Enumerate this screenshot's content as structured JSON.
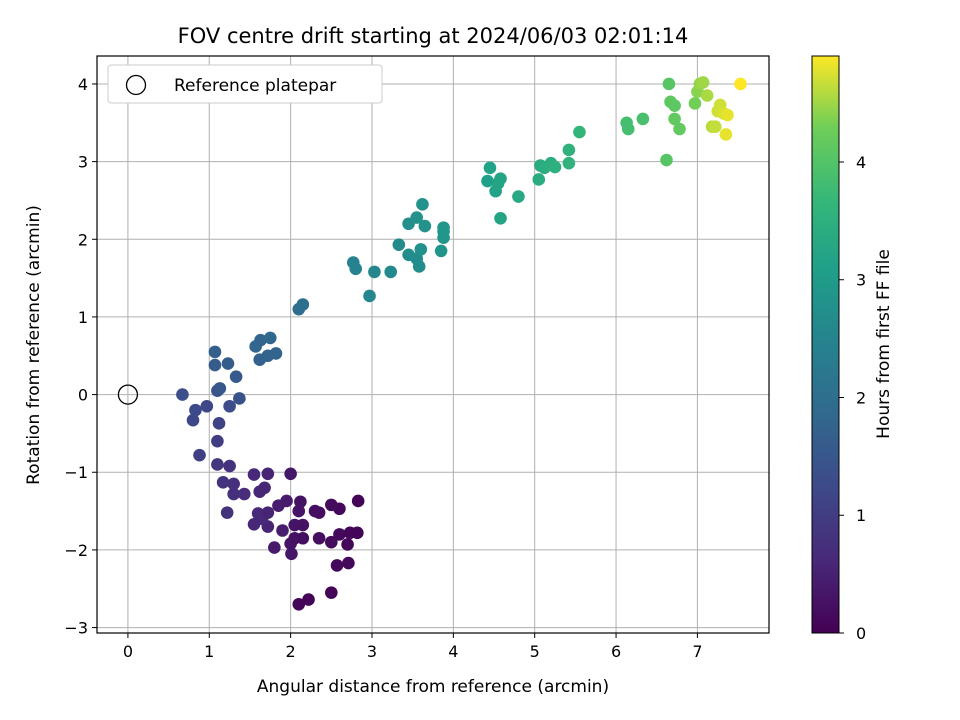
{
  "chart_data": {
    "type": "scatter",
    "title": "FOV centre drift starting at 2024/06/03 02:01:14",
    "xlabel": "Angular distance from reference (arcmin)",
    "ylabel": "Rotation from reference (arcmin)",
    "xlim": [
      -0.38,
      7.88
    ],
    "ylim": [
      -3.07,
      4.36
    ],
    "xticks": [
      0,
      1,
      2,
      3,
      4,
      5,
      6,
      7
    ],
    "yticks": [
      -3,
      -2,
      -1,
      0,
      1,
      2,
      3,
      4
    ],
    "grid": true,
    "legend": {
      "position": "top-left",
      "entries": [
        "Reference platepar"
      ]
    },
    "reference_point": {
      "x": 0,
      "y": 0
    },
    "colorbar": {
      "label": "Hours from first FF file",
      "colormap": "viridis",
      "range": [
        0,
        4.9
      ],
      "ticks": [
        0,
        1,
        2,
        3,
        4
      ]
    },
    "points": [
      {
        "x": 2.1,
        "y": -2.7,
        "c": 0.05
      },
      {
        "x": 2.22,
        "y": -2.64,
        "c": 0.07
      },
      {
        "x": 2.5,
        "y": -2.55,
        "c": 0.06
      },
      {
        "x": 2.57,
        "y": -2.2,
        "c": 0.1
      },
      {
        "x": 2.71,
        "y": -2.17,
        "c": 0.12
      },
      {
        "x": 2.01,
        "y": -2.05,
        "c": 0.35
      },
      {
        "x": 1.8,
        "y": -1.97,
        "c": 0.4
      },
      {
        "x": 2.0,
        "y": -1.92,
        "c": 0.3
      },
      {
        "x": 2.5,
        "y": -1.9,
        "c": 0.15
      },
      {
        "x": 2.7,
        "y": -1.93,
        "c": 0.1
      },
      {
        "x": 2.35,
        "y": -1.85,
        "c": 0.2
      },
      {
        "x": 2.05,
        "y": -1.85,
        "c": 0.25
      },
      {
        "x": 2.15,
        "y": -1.85,
        "c": 0.22
      },
      {
        "x": 2.6,
        "y": -1.8,
        "c": 0.12
      },
      {
        "x": 2.73,
        "y": -1.78,
        "c": 0.08
      },
      {
        "x": 2.82,
        "y": -1.78,
        "c": 0.05
      },
      {
        "x": 1.9,
        "y": -1.75,
        "c": 0.45
      },
      {
        "x": 1.72,
        "y": -1.7,
        "c": 0.55
      },
      {
        "x": 2.05,
        "y": -1.68,
        "c": 0.3
      },
      {
        "x": 2.15,
        "y": -1.68,
        "c": 0.28
      },
      {
        "x": 1.55,
        "y": -1.67,
        "c": 0.6
      },
      {
        "x": 1.65,
        "y": -1.6,
        "c": 0.62
      },
      {
        "x": 1.6,
        "y": -1.53,
        "c": 0.65
      },
      {
        "x": 2.35,
        "y": -1.52,
        "c": 0.18
      },
      {
        "x": 2.3,
        "y": -1.5,
        "c": 0.2
      },
      {
        "x": 2.1,
        "y": -1.5,
        "c": 0.3
      },
      {
        "x": 2.6,
        "y": -1.47,
        "c": 0.12
      },
      {
        "x": 1.72,
        "y": -1.52,
        "c": 0.55
      },
      {
        "x": 1.22,
        "y": -1.52,
        "c": 0.8
      },
      {
        "x": 1.85,
        "y": -1.43,
        "c": 0.45
      },
      {
        "x": 2.5,
        "y": -1.42,
        "c": 0.15
      },
      {
        "x": 2.12,
        "y": -1.38,
        "c": 0.28
      },
      {
        "x": 1.95,
        "y": -1.37,
        "c": 0.4
      },
      {
        "x": 2.83,
        "y": -1.37,
        "c": 0.05
      },
      {
        "x": 1.3,
        "y": -1.28,
        "c": 0.75
      },
      {
        "x": 1.43,
        "y": -1.28,
        "c": 0.7
      },
      {
        "x": 1.62,
        "y": -1.25,
        "c": 0.6
      },
      {
        "x": 1.68,
        "y": -1.2,
        "c": 0.58
      },
      {
        "x": 1.3,
        "y": -1.15,
        "c": 0.75
      },
      {
        "x": 1.17,
        "y": -1.13,
        "c": 0.82
      },
      {
        "x": 1.55,
        "y": -1.03,
        "c": 0.62
      },
      {
        "x": 1.72,
        "y": -1.02,
        "c": 0.55
      },
      {
        "x": 2.0,
        "y": -1.02,
        "c": 0.35
      },
      {
        "x": 1.1,
        "y": -0.9,
        "c": 0.88
      },
      {
        "x": 1.25,
        "y": -0.92,
        "c": 0.8
      },
      {
        "x": 0.88,
        "y": -0.78,
        "c": 1.05
      },
      {
        "x": 1.1,
        "y": -0.6,
        "c": 1.0
      },
      {
        "x": 1.12,
        "y": -0.37,
        "c": 1.1
      },
      {
        "x": 0.8,
        "y": -0.33,
        "c": 1.2
      },
      {
        "x": 0.83,
        "y": -0.2,
        "c": 1.25
      },
      {
        "x": 0.97,
        "y": -0.15,
        "c": 1.2
      },
      {
        "x": 1.25,
        "y": -0.15,
        "c": 1.3
      },
      {
        "x": 0.67,
        "y": 0.0,
        "c": 1.35
      },
      {
        "x": 1.37,
        "y": -0.05,
        "c": 1.4
      },
      {
        "x": 1.1,
        "y": 0.05,
        "c": 1.45
      },
      {
        "x": 1.13,
        "y": 0.08,
        "c": 1.5
      },
      {
        "x": 1.33,
        "y": 0.23,
        "c": 1.55
      },
      {
        "x": 1.07,
        "y": 0.38,
        "c": 1.6
      },
      {
        "x": 1.23,
        "y": 0.4,
        "c": 1.6
      },
      {
        "x": 1.07,
        "y": 0.55,
        "c": 1.65
      },
      {
        "x": 1.62,
        "y": 0.45,
        "c": 1.7
      },
      {
        "x": 1.72,
        "y": 0.5,
        "c": 1.75
      },
      {
        "x": 1.82,
        "y": 0.53,
        "c": 1.75
      },
      {
        "x": 1.57,
        "y": 0.62,
        "c": 1.8
      },
      {
        "x": 1.63,
        "y": 0.7,
        "c": 1.8
      },
      {
        "x": 1.75,
        "y": 0.73,
        "c": 1.85
      },
      {
        "x": 2.1,
        "y": 1.1,
        "c": 2.0
      },
      {
        "x": 2.15,
        "y": 1.16,
        "c": 2.0
      },
      {
        "x": 2.77,
        "y": 1.7,
        "c": 2.45
      },
      {
        "x": 2.8,
        "y": 1.62,
        "c": 2.45
      },
      {
        "x": 2.97,
        "y": 1.27,
        "c": 2.55
      },
      {
        "x": 3.03,
        "y": 1.58,
        "c": 2.55
      },
      {
        "x": 3.23,
        "y": 1.58,
        "c": 2.6
      },
      {
        "x": 3.33,
        "y": 1.93,
        "c": 2.65
      },
      {
        "x": 3.45,
        "y": 1.8,
        "c": 2.7
      },
      {
        "x": 3.55,
        "y": 1.75,
        "c": 2.7
      },
      {
        "x": 3.58,
        "y": 1.65,
        "c": 2.7
      },
      {
        "x": 3.6,
        "y": 1.87,
        "c": 2.75
      },
      {
        "x": 3.45,
        "y": 2.2,
        "c": 2.75
      },
      {
        "x": 3.55,
        "y": 2.28,
        "c": 2.8
      },
      {
        "x": 3.62,
        "y": 2.45,
        "c": 2.8
      },
      {
        "x": 3.65,
        "y": 2.17,
        "c": 2.8
      },
      {
        "x": 3.85,
        "y": 1.85,
        "c": 2.85
      },
      {
        "x": 3.88,
        "y": 2.02,
        "c": 2.9
      },
      {
        "x": 3.88,
        "y": 2.1,
        "c": 2.9
      },
      {
        "x": 3.88,
        "y": 2.15,
        "c": 2.9
      },
      {
        "x": 4.42,
        "y": 2.75,
        "c": 3.1
      },
      {
        "x": 4.45,
        "y": 2.92,
        "c": 3.15
      },
      {
        "x": 4.52,
        "y": 2.62,
        "c": 3.15
      },
      {
        "x": 4.55,
        "y": 2.72,
        "c": 3.2
      },
      {
        "x": 4.58,
        "y": 2.27,
        "c": 3.2
      },
      {
        "x": 4.58,
        "y": 2.78,
        "c": 3.2
      },
      {
        "x": 4.8,
        "y": 2.55,
        "c": 3.3
      },
      {
        "x": 5.05,
        "y": 2.77,
        "c": 3.4
      },
      {
        "x": 5.07,
        "y": 2.95,
        "c": 3.4
      },
      {
        "x": 5.12,
        "y": 2.92,
        "c": 3.45
      },
      {
        "x": 5.2,
        "y": 2.98,
        "c": 3.45
      },
      {
        "x": 5.25,
        "y": 2.93,
        "c": 3.5
      },
      {
        "x": 5.42,
        "y": 2.98,
        "c": 3.55
      },
      {
        "x": 5.42,
        "y": 3.15,
        "c": 3.55
      },
      {
        "x": 5.55,
        "y": 3.38,
        "c": 3.6
      },
      {
        "x": 6.13,
        "y": 3.5,
        "c": 3.85
      },
      {
        "x": 6.15,
        "y": 3.42,
        "c": 3.85
      },
      {
        "x": 6.33,
        "y": 3.55,
        "c": 3.9
      },
      {
        "x": 6.62,
        "y": 3.02,
        "c": 4.05
      },
      {
        "x": 6.65,
        "y": 4.0,
        "c": 4.05
      },
      {
        "x": 6.67,
        "y": 3.77,
        "c": 4.1
      },
      {
        "x": 6.72,
        "y": 3.72,
        "c": 4.1
      },
      {
        "x": 6.72,
        "y": 3.55,
        "c": 4.15
      },
      {
        "x": 6.78,
        "y": 3.42,
        "c": 4.15
      },
      {
        "x": 6.97,
        "y": 3.75,
        "c": 4.3
      },
      {
        "x": 7.0,
        "y": 3.9,
        "c": 4.4
      },
      {
        "x": 7.03,
        "y": 4.0,
        "c": 4.45
      },
      {
        "x": 7.07,
        "y": 4.02,
        "c": 4.5
      },
      {
        "x": 7.12,
        "y": 3.85,
        "c": 4.55
      },
      {
        "x": 7.18,
        "y": 3.45,
        "c": 4.6
      },
      {
        "x": 7.22,
        "y": 3.45,
        "c": 4.65
      },
      {
        "x": 7.25,
        "y": 3.65,
        "c": 4.7
      },
      {
        "x": 7.28,
        "y": 3.73,
        "c": 4.7
      },
      {
        "x": 7.32,
        "y": 3.62,
        "c": 4.75
      },
      {
        "x": 7.37,
        "y": 3.6,
        "c": 4.8
      },
      {
        "x": 7.35,
        "y": 3.35,
        "c": 4.8
      },
      {
        "x": 7.53,
        "y": 4.0,
        "c": 4.9
      }
    ]
  }
}
